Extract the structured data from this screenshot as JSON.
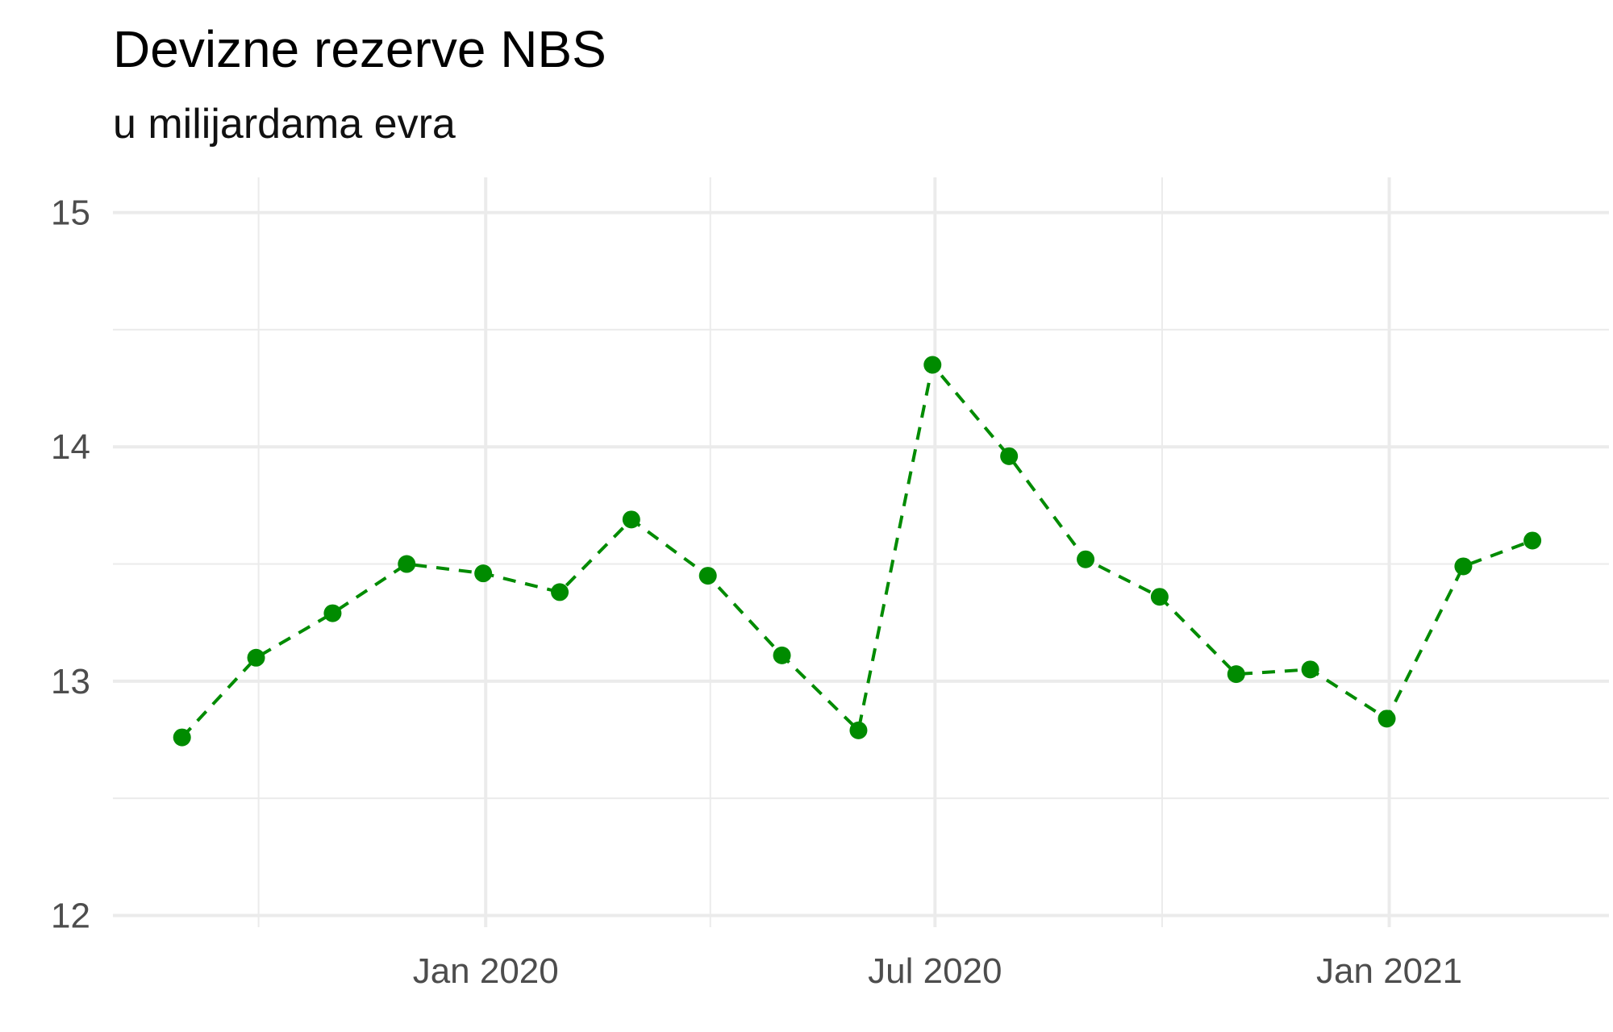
{
  "chart_data": {
    "type": "line",
    "title": "Devizne rezerve NBS",
    "subtitle": "u milijardama evra",
    "xlabel": "",
    "ylabel": "",
    "x": [
      "2019-08-31",
      "2019-09-30",
      "2019-10-31",
      "2019-11-30",
      "2019-12-31",
      "2020-01-31",
      "2020-02-29",
      "2020-03-31",
      "2020-04-30",
      "2020-05-31",
      "2020-06-30",
      "2020-07-31",
      "2020-08-31",
      "2020-09-30",
      "2020-10-31",
      "2020-11-30",
      "2020-12-31",
      "2021-01-31",
      "2021-02-28"
    ],
    "series": [
      {
        "values": [
          12.76,
          13.1,
          13.29,
          13.5,
          13.46,
          13.38,
          13.69,
          13.45,
          13.11,
          12.79,
          14.35,
          13.96,
          13.52,
          13.36,
          13.03,
          13.05,
          12.84,
          13.49,
          13.6
        ]
      }
    ],
    "ylim": [
      11.95,
      15.15
    ],
    "xlim": [
      "2019-08-03",
      "2021-03-31"
    ],
    "yticks": [
      12,
      13,
      14,
      15
    ],
    "xticks": [
      {
        "date": "2020-01-01",
        "label": "Jan 2020"
      },
      {
        "date": "2020-07-01",
        "label": "Jul 2020"
      },
      {
        "date": "2021-01-01",
        "label": "Jan 2021"
      }
    ],
    "x_minor_gridlines": [
      "2019-10-01",
      "2020-04-01",
      "2020-10-01"
    ],
    "line_style": "dashed",
    "color": "#008B00",
    "grid": true,
    "legend": "none"
  }
}
